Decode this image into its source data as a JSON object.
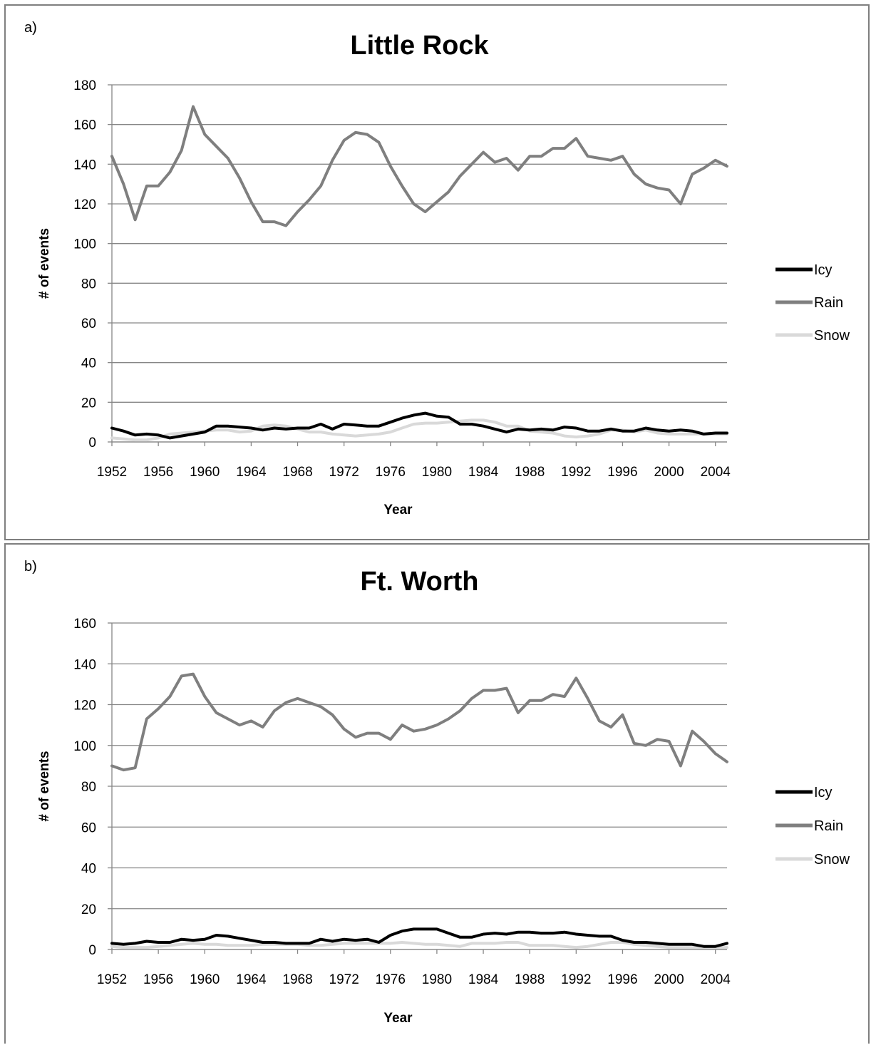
{
  "chart_data": [
    {
      "panel_label": "a)",
      "type": "line",
      "title": "Little Rock",
      "xlabel": "Year",
      "ylabel": "# of events",
      "xlim": [
        1952,
        2005
      ],
      "ylim": [
        0,
        180
      ],
      "yticks": [
        0,
        20,
        40,
        60,
        80,
        100,
        120,
        140,
        160,
        180
      ],
      "xticks": [
        1952,
        1956,
        1960,
        1964,
        1968,
        1972,
        1976,
        1980,
        1984,
        1988,
        1992,
        1996,
        2000,
        2004
      ],
      "grid": true,
      "legend_position": "right",
      "x": [
        1952,
        1953,
        1954,
        1955,
        1956,
        1957,
        1958,
        1959,
        1960,
        1961,
        1962,
        1963,
        1964,
        1965,
        1966,
        1967,
        1968,
        1969,
        1970,
        1971,
        1972,
        1973,
        1974,
        1975,
        1976,
        1977,
        1978,
        1979,
        1980,
        1981,
        1982,
        1983,
        1984,
        1985,
        1986,
        1987,
        1988,
        1989,
        1990,
        1991,
        1992,
        1993,
        1994,
        1995,
        1996,
        1997,
        1998,
        1999,
        2000,
        2001,
        2002,
        2003,
        2004,
        2005
      ],
      "series": [
        {
          "name": "Icy",
          "color": "#000000",
          "values": [
            7,
            5.5,
            3.5,
            4,
            3.5,
            2,
            3,
            4,
            5,
            8,
            8,
            7.5,
            7,
            6,
            7,
            6.5,
            7,
            7,
            9,
            6.5,
            9,
            8.5,
            8,
            8,
            10,
            12,
            13.5,
            14.5,
            13,
            12.5,
            9,
            9,
            8,
            6.5,
            5,
            6.5,
            6,
            6.5,
            6,
            7.5,
            7,
            5.5,
            5.5,
            6.5,
            5.5,
            5.5,
            7,
            6,
            5.5,
            6,
            5.5,
            4,
            4.5,
            4.5
          ]
        },
        {
          "name": "Rain",
          "color": "#7f7f7f",
          "values": [
            144,
            130,
            112,
            129,
            129,
            136,
            147,
            169,
            155,
            149,
            143,
            133,
            121,
            111,
            111,
            109,
            116,
            122,
            129,
            142,
            152,
            156,
            155,
            151,
            139,
            129,
            120,
            116,
            121,
            126,
            134,
            140,
            146,
            141,
            143,
            137,
            144,
            144,
            148,
            148,
            153,
            144,
            143,
            142,
            144,
            135,
            130,
            128,
            127,
            120,
            135,
            138,
            142,
            139
          ]
        },
        {
          "name": "Snow",
          "color": "#d9d9d9",
          "values": [
            2,
            1.5,
            1,
            1,
            2,
            4,
            4.5,
            5,
            5.5,
            6,
            6,
            5,
            5.5,
            8,
            8.5,
            8,
            6.5,
            5,
            5,
            4,
            3.5,
            3,
            3.5,
            4,
            5,
            7,
            9,
            9.5,
            9.5,
            10,
            10.5,
            11,
            11,
            10,
            8,
            8,
            5.5,
            5,
            4.5,
            3,
            2.5,
            3,
            4,
            6,
            6,
            5,
            6,
            4.5,
            4,
            4,
            4,
            4,
            4,
            4
          ]
        }
      ]
    },
    {
      "panel_label": "b)",
      "type": "line",
      "title": "Ft. Worth",
      "xlabel": "Year",
      "ylabel": "# of events",
      "xlim": [
        1952,
        2005
      ],
      "ylim": [
        0,
        160
      ],
      "yticks": [
        0,
        20,
        40,
        60,
        80,
        100,
        120,
        140,
        160
      ],
      "xticks": [
        1952,
        1956,
        1960,
        1964,
        1968,
        1972,
        1976,
        1980,
        1984,
        1988,
        1992,
        1996,
        2000,
        2004
      ],
      "grid": true,
      "legend_position": "right",
      "x": [
        1952,
        1953,
        1954,
        1955,
        1956,
        1957,
        1958,
        1959,
        1960,
        1961,
        1962,
        1963,
        1964,
        1965,
        1966,
        1967,
        1968,
        1969,
        1970,
        1971,
        1972,
        1973,
        1974,
        1975,
        1976,
        1977,
        1978,
        1979,
        1980,
        1981,
        1982,
        1983,
        1984,
        1985,
        1986,
        1987,
        1988,
        1989,
        1990,
        1991,
        1992,
        1993,
        1994,
        1995,
        1996,
        1997,
        1998,
        1999,
        2000,
        2001,
        2002,
        2003,
        2004,
        2005
      ],
      "series": [
        {
          "name": "Icy",
          "color": "#000000",
          "values": [
            3,
            2.5,
            3,
            4,
            3.5,
            3.5,
            5,
            4.5,
            5,
            7,
            6.5,
            5.5,
            4.5,
            3.5,
            3.5,
            3,
            3,
            3,
            5,
            4,
            5,
            4.5,
            5,
            3.5,
            7,
            9,
            10,
            10,
            10,
            8,
            6,
            6,
            7.5,
            8,
            7.5,
            8.5,
            8.5,
            8,
            8,
            8.5,
            7.5,
            7,
            6.5,
            6.5,
            4.5,
            3.5,
            3.5,
            3,
            2.5,
            2.5,
            2.5,
            1.5,
            1.5,
            3
          ]
        },
        {
          "name": "Rain",
          "color": "#7f7f7f",
          "values": [
            90,
            88,
            89,
            113,
            118,
            124,
            134,
            135,
            124,
            116,
            113,
            110,
            112,
            109,
            117,
            121,
            123,
            121,
            119,
            115,
            108,
            104,
            106,
            106,
            103,
            110,
            107,
            108,
            110,
            113,
            117,
            123,
            127,
            127,
            128,
            116,
            122,
            122,
            125,
            124,
            133,
            123,
            112,
            109,
            115,
            101,
            100,
            103,
            102,
            90,
            107,
            102,
            96,
            92
          ]
        },
        {
          "name": "Snow",
          "color": "#d9d9d9",
          "values": [
            1.5,
            1,
            1,
            1,
            1.5,
            2,
            2.5,
            3,
            2.5,
            2.5,
            2,
            2,
            2,
            2.5,
            2.5,
            2.5,
            2.5,
            2,
            2,
            2.5,
            3,
            3,
            3,
            3,
            3,
            3.5,
            3,
            2.5,
            2.5,
            2,
            1.5,
            3,
            3,
            3,
            3.5,
            3.5,
            2,
            2,
            2,
            1.5,
            1,
            1.5,
            2.5,
            3.5,
            3.5,
            2.5,
            2,
            1.5,
            1,
            1,
            1,
            1,
            1,
            1
          ]
        }
      ]
    }
  ]
}
